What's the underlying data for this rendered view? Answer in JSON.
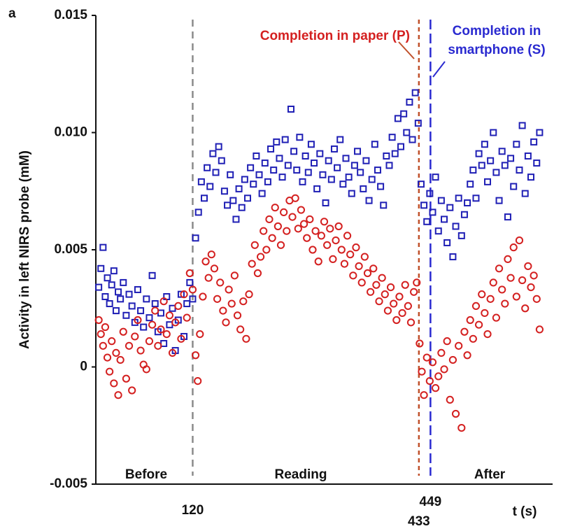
{
  "chart_data": {
    "type": "scatter",
    "panel_label": "a",
    "y_label": "Activity in left NIRS probe (mM)",
    "x_label": "t (s)",
    "xlim": [
      -14,
      618
    ],
    "ylim": [
      -0.005,
      0.015
    ],
    "yticks": [
      -0.005,
      0,
      0.005,
      {
        "value": 0.01,
        "label": "0.010"
      },
      0.015
    ],
    "xticks": [
      120,
      433,
      449
    ],
    "xtick_line_colors": [
      "#8a8a8a",
      "#c0502a",
      "#2a2ad0"
    ],
    "regions": [
      "Before",
      "Reading",
      "After"
    ],
    "annotations": [
      {
        "text": "Completion in paper (P)",
        "color": "#d42020"
      },
      {
        "text": "Completion in",
        "color": "#2a2ad0"
      },
      {
        "text": "smartphone (S)",
        "color": "#2a2ad0"
      }
    ],
    "series": [
      {
        "marker": "square",
        "color": "#1f1fb5",
        "x": [
          -10,
          -7,
          -4,
          -1,
          2,
          5,
          8,
          11,
          14,
          17,
          20,
          24,
          28,
          32,
          36,
          40,
          44,
          48,
          52,
          56,
          60,
          64,
          68,
          72,
          76,
          80,
          84,
          88,
          92,
          96,
          100,
          104,
          108,
          112,
          116,
          120,
          124,
          128,
          132,
          136,
          140,
          144,
          148,
          152,
          156,
          160,
          164,
          168,
          172,
          176,
          180,
          184,
          188,
          192,
          196,
          200,
          204,
          208,
          212,
          216,
          220,
          224,
          228,
          232,
          236,
          240,
          244,
          248,
          252,
          256,
          260,
          264,
          268,
          272,
          276,
          280,
          284,
          288,
          292,
          296,
          300,
          304,
          308,
          312,
          316,
          320,
          324,
          328,
          332,
          336,
          340,
          344,
          348,
          352,
          356,
          360,
          364,
          368,
          372,
          376,
          380,
          384,
          388,
          392,
          396,
          400,
          404,
          408,
          412,
          416,
          420,
          424,
          428,
          432,
          436,
          440,
          444,
          448,
          452,
          456,
          460,
          464,
          468,
          472,
          476,
          480,
          484,
          488,
          492,
          496,
          500,
          504,
          508,
          512,
          516,
          520,
          524,
          528,
          532,
          536,
          540,
          544,
          548,
          552,
          556,
          560,
          564,
          568,
          572,
          576,
          580,
          584,
          588,
          592,
          596,
          600
        ],
        "values": [
          0.0034,
          0.0042,
          0.0051,
          0.003,
          0.0038,
          0.0027,
          0.0035,
          0.0041,
          0.0024,
          0.0032,
          0.0029,
          0.0036,
          0.0022,
          0.0031,
          0.0026,
          0.0019,
          0.0033,
          0.0024,
          0.0017,
          0.0029,
          0.0021,
          0.0039,
          0.0027,
          0.0015,
          0.0023,
          0.001,
          0.003,
          0.0018,
          0.0025,
          0.0007,
          0.002,
          0.0031,
          0.0013,
          0.0027,
          0.0036,
          0.0029,
          0.0055,
          0.0066,
          0.0079,
          0.0072,
          0.0085,
          0.0077,
          0.0091,
          0.0083,
          0.0094,
          0.0088,
          0.0075,
          0.0069,
          0.0082,
          0.0071,
          0.0063,
          0.0076,
          0.0068,
          0.008,
          0.0072,
          0.0085,
          0.0078,
          0.009,
          0.0082,
          0.0074,
          0.0087,
          0.0079,
          0.0093,
          0.0084,
          0.0096,
          0.0089,
          0.0081,
          0.0097,
          0.0086,
          0.011,
          0.0092,
          0.0084,
          0.0098,
          0.0079,
          0.009,
          0.0083,
          0.0095,
          0.0087,
          0.0076,
          0.0091,
          0.0082,
          0.007,
          0.0088,
          0.008,
          0.0093,
          0.0085,
          0.0097,
          0.0078,
          0.0089,
          0.0081,
          0.0074,
          0.0086,
          0.0092,
          0.0083,
          0.0076,
          0.0088,
          0.0071,
          0.008,
          0.0095,
          0.0084,
          0.0077,
          0.0069,
          0.009,
          0.0086,
          0.0098,
          0.0091,
          0.0106,
          0.0094,
          0.0108,
          0.01,
          0.0113,
          0.0097,
          0.0117,
          0.0104,
          0.0078,
          0.0069,
          0.0062,
          0.0074,
          0.0066,
          0.0081,
          0.0058,
          0.0071,
          0.0063,
          0.0053,
          0.0068,
          0.0047,
          0.006,
          0.0072,
          0.0056,
          0.0065,
          0.007,
          0.0078,
          0.0084,
          0.0072,
          0.0091,
          0.0086,
          0.0095,
          0.0079,
          0.0088,
          0.01,
          0.0083,
          0.0071,
          0.0092,
          0.0086,
          0.0064,
          0.0089,
          0.0077,
          0.0095,
          0.0084,
          0.0103,
          0.0074,
          0.009,
          0.0081,
          0.0096,
          0.0087,
          0.01
        ]
      },
      {
        "marker": "circle",
        "color": "#d42020",
        "x": [
          -10,
          -7,
          -4,
          -1,
          2,
          5,
          8,
          11,
          14,
          17,
          20,
          24,
          28,
          32,
          36,
          40,
          44,
          48,
          52,
          56,
          60,
          64,
          68,
          72,
          76,
          80,
          84,
          88,
          92,
          96,
          100,
          104,
          108,
          112,
          116,
          120,
          124,
          127,
          130,
          134,
          138,
          142,
          146,
          150,
          154,
          158,
          162,
          166,
          170,
          174,
          178,
          182,
          186,
          190,
          194,
          198,
          202,
          206,
          210,
          214,
          218,
          222,
          226,
          230,
          234,
          238,
          242,
          246,
          250,
          254,
          258,
          262,
          266,
          270,
          274,
          278,
          282,
          286,
          290,
          294,
          298,
          302,
          306,
          310,
          314,
          318,
          322,
          326,
          330,
          334,
          338,
          342,
          346,
          350,
          354,
          358,
          362,
          366,
          370,
          374,
          378,
          382,
          386,
          390,
          394,
          398,
          402,
          406,
          410,
          414,
          418,
          422,
          426,
          430,
          434,
          437,
          440,
          444,
          448,
          452,
          456,
          460,
          464,
          468,
          472,
          476,
          480,
          484,
          488,
          492,
          496,
          500,
          504,
          508,
          512,
          516,
          520,
          524,
          528,
          532,
          536,
          540,
          544,
          548,
          552,
          556,
          560,
          564,
          568,
          572,
          576,
          580,
          584,
          588,
          592,
          596,
          600
        ],
        "values": [
          0.002,
          0.0014,
          0.0009,
          0.0017,
          0.0004,
          -0.0002,
          0.0011,
          -0.0007,
          0.0006,
          -0.0012,
          0.0003,
          0.0015,
          -0.0005,
          0.0009,
          -0.001,
          0.0013,
          0.002,
          0.0007,
          0.0001,
          -0.0001,
          0.0011,
          0.0018,
          0.0024,
          0.0009,
          0.0016,
          0.0028,
          0.0014,
          0.0022,
          0.0006,
          0.0019,
          0.0026,
          0.0012,
          0.0031,
          0.0021,
          0.004,
          0.0033,
          0.0005,
          -0.0006,
          0.0014,
          0.003,
          0.0045,
          0.0038,
          0.0048,
          0.0042,
          0.0029,
          0.0036,
          0.0024,
          0.0019,
          0.0033,
          0.0027,
          0.0039,
          0.0022,
          0.0016,
          0.0028,
          0.0012,
          0.0031,
          0.0044,
          0.0052,
          0.004,
          0.0047,
          0.0058,
          0.005,
          0.0063,
          0.0055,
          0.0068,
          0.006,
          0.0052,
          0.0066,
          0.0058,
          0.0071,
          0.0064,
          0.0072,
          0.0059,
          0.0067,
          0.0061,
          0.0055,
          0.0063,
          0.005,
          0.0058,
          0.0045,
          0.0056,
          0.0062,
          0.0052,
          0.0059,
          0.0046,
          0.0054,
          0.006,
          0.005,
          0.0044,
          0.0056,
          0.0048,
          0.0039,
          0.0051,
          0.0043,
          0.0036,
          0.0047,
          0.004,
          0.0032,
          0.0042,
          0.0035,
          0.0028,
          0.0038,
          0.0031,
          0.0024,
          0.0034,
          0.0027,
          0.002,
          0.003,
          0.0023,
          0.0035,
          0.0026,
          0.0019,
          0.0032,
          0.0036,
          0.001,
          -0.0002,
          -0.0012,
          0.0004,
          -0.0006,
          0.0002,
          -0.0009,
          -0.0004,
          0.0006,
          -0.0001,
          0.0011,
          -0.0014,
          0.0003,
          -0.002,
          0.0009,
          -0.0026,
          0.0015,
          0.0005,
          0.002,
          0.0012,
          0.0026,
          0.0018,
          0.0031,
          0.0023,
          0.0014,
          0.0029,
          0.0036,
          0.0021,
          0.0042,
          0.0033,
          0.0027,
          0.0046,
          0.0038,
          0.0051,
          0.003,
          0.0054,
          0.0037,
          0.0025,
          0.0043,
          0.0034,
          0.0039,
          0.0029,
          0.0016
        ]
      }
    ]
  }
}
